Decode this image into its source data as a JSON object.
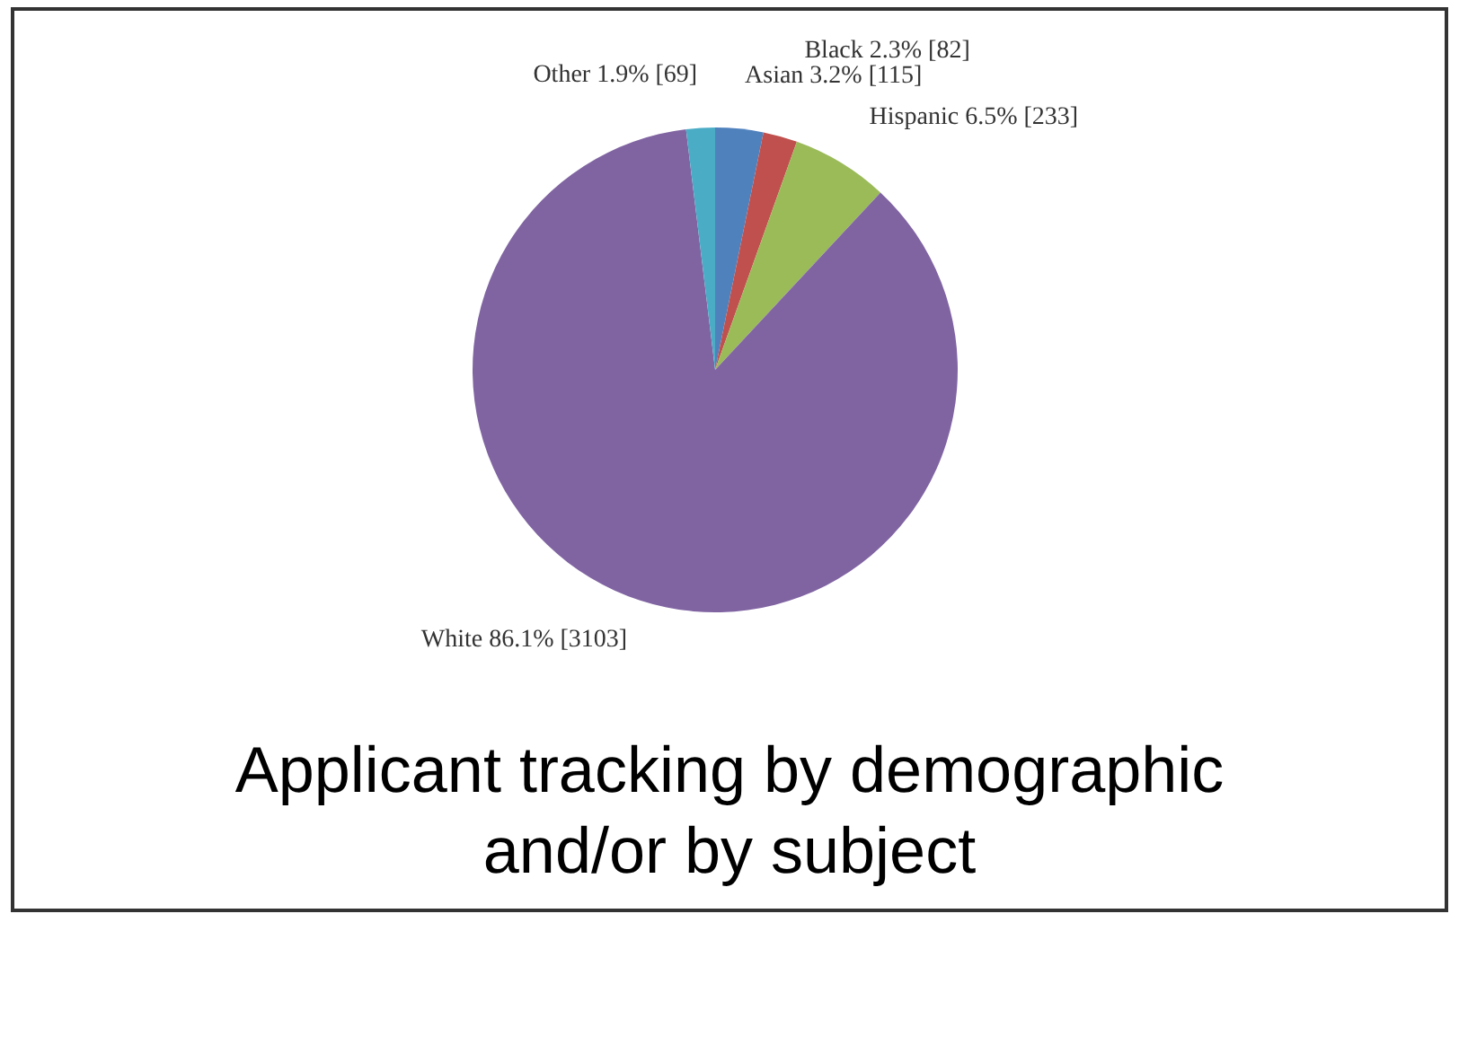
{
  "chart_data": {
    "type": "pie",
    "title": "Applicant tracking by demographic and/or by subject",
    "categories": [
      "Asian",
      "Black",
      "Hispanic",
      "White",
      "Other"
    ],
    "values": [
      115,
      82,
      233,
      3103,
      69
    ],
    "value_labels": [
      "3.2% [115]",
      "2.3% [82]",
      "6.5% [233]",
      "86.1% [3103]",
      "1.9% [69]"
    ],
    "colors": [
      "#4f81bd",
      "#c0504d",
      "#9bbb59",
      "#8064a2",
      "#4bacc6"
    ],
    "legend": false
  }
}
